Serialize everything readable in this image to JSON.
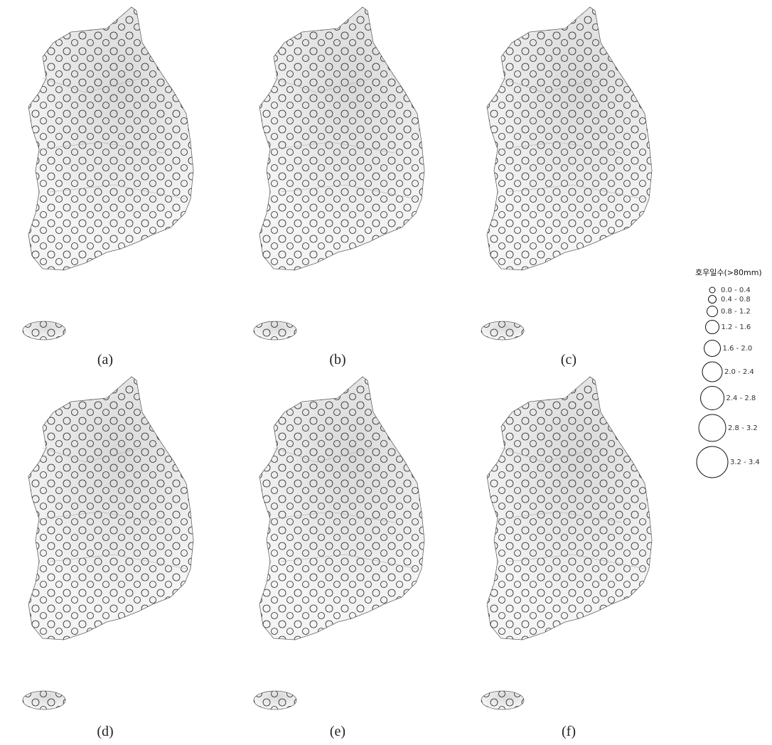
{
  "panels": [
    {
      "label": "(a)"
    },
    {
      "label": "(b)"
    },
    {
      "label": "(c)"
    },
    {
      "label": "(d)"
    },
    {
      "label": "(e)"
    },
    {
      "label": "(f)"
    }
  ],
  "legend": {
    "title": "호우일수(>80mm)",
    "classes": [
      "0.0 - 0.4",
      "0.4 - 0.8",
      "0.8 - 1.2",
      "1.2 - 1.6",
      "1.6 - 2.0",
      "2.0 - 2.4",
      "2.4 - 2.8",
      "2.8 - 3.2",
      "3.2 - 3.4"
    ]
  }
}
